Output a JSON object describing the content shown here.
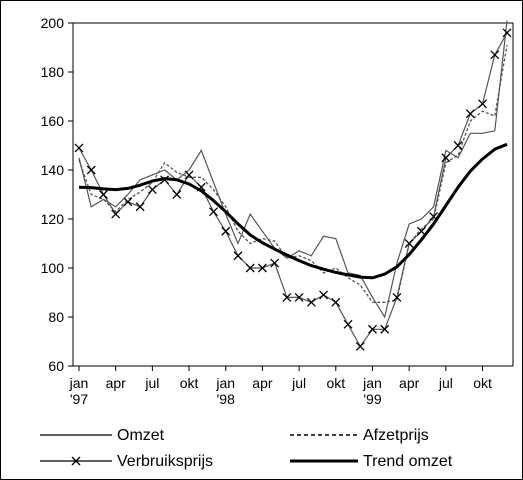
{
  "chart_data": {
    "type": "line",
    "ylim": [
      60,
      200
    ],
    "yticks": [
      60,
      80,
      100,
      120,
      140,
      160,
      180,
      200
    ],
    "x_range": [
      0,
      35
    ],
    "xticks": [
      {
        "x": 0,
        "label": "jan",
        "sub": "'97"
      },
      {
        "x": 3,
        "label": "apr",
        "sub": ""
      },
      {
        "x": 6,
        "label": "jul",
        "sub": ""
      },
      {
        "x": 9,
        "label": "okt",
        "sub": ""
      },
      {
        "x": 12,
        "label": "jan",
        "sub": "'98"
      },
      {
        "x": 15,
        "label": "apr",
        "sub": ""
      },
      {
        "x": 18,
        "label": "jul",
        "sub": ""
      },
      {
        "x": 21,
        "label": "okt",
        "sub": ""
      },
      {
        "x": 24,
        "label": "jan",
        "sub": "'99"
      },
      {
        "x": 27,
        "label": "apr",
        "sub": ""
      },
      {
        "x": 30,
        "label": "jul",
        "sub": ""
      },
      {
        "x": 33,
        "label": "okt",
        "sub": ""
      }
    ],
    "series": [
      {
        "name": "Omzet",
        "style": "thin-solid",
        "color": "#555555",
        "values": [
          145,
          125,
          128,
          125,
          130,
          136,
          138,
          140,
          136,
          140,
          148,
          135,
          122,
          110,
          122,
          115,
          108,
          104,
          107,
          105,
          113,
          112,
          98,
          97,
          88,
          80,
          102,
          118,
          120,
          125,
          148,
          145,
          155,
          155,
          156,
          201
        ]
      },
      {
        "name": "Afzetprijs",
        "style": "dashed",
        "color": "#555555",
        "values": [
          144,
          130,
          128,
          123,
          128,
          131,
          135,
          143,
          139,
          137,
          137,
          132,
          125,
          115,
          110,
          112,
          111,
          104,
          105,
          103,
          98,
          100,
          96,
          93,
          86,
          86,
          87,
          110,
          116,
          120,
          143,
          146,
          160,
          164,
          162,
          191
        ]
      },
      {
        "name": "Verbruiksprijs",
        "style": "marker-x",
        "color": "#555555",
        "values": [
          149,
          140,
          130,
          122,
          127,
          125,
          132,
          136,
          130,
          138,
          133,
          123,
          115,
          105,
          100,
          100,
          102,
          88,
          88,
          86,
          89,
          86,
          77,
          68,
          75,
          75,
          88,
          110,
          115,
          121,
          145,
          150,
          163,
          167,
          187,
          196
        ]
      },
      {
        "name": "Trend omzet",
        "style": "thick-solid",
        "color": "#000000",
        "values": [
          133,
          132.8,
          132.3,
          132,
          132.5,
          133.8,
          135.5,
          136.5,
          136,
          134.3,
          131.5,
          127.5,
          123,
          118,
          113.5,
          110.3,
          107.7,
          105.3,
          103,
          101,
          99.5,
          98.2,
          97.2,
          96.3,
          96,
          97.5,
          100.5,
          105.5,
          111.5,
          118,
          125.5,
          133,
          139.5,
          144.5,
          148.5,
          150.5
        ]
      }
    ],
    "legend": {
      "placement": "bottom",
      "items": [
        {
          "label": "Omzet",
          "style": "thin-solid"
        },
        {
          "label": "Afzetprijs",
          "style": "dashed"
        },
        {
          "label": "Verbruiksprijs",
          "style": "marker-x"
        },
        {
          "label": "Trend omzet",
          "style": "thick-solid"
        }
      ]
    },
    "grid": false
  }
}
